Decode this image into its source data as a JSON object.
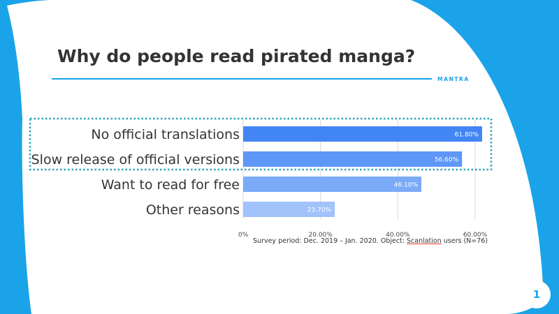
{
  "slide": {
    "title": "Why do people read pirated manga?",
    "brand": "MANTRA",
    "page_number": "1",
    "note_prefix": "Survey period: Dec. 2019 – Jan. 2020. Object: ",
    "note_underlined": "Scanlation",
    "note_suffix": " users (N=76)",
    "colors": {
      "background": "#1aa3e8",
      "panel": "#ffffff",
      "accent": "#1aa3e8",
      "highlight_outline": "#2aa5b8"
    }
  },
  "chart_data": {
    "type": "bar",
    "orientation": "horizontal",
    "categories": [
      "No official translations",
      "Slow release of official versions",
      "Want to read for free",
      "Other reasons"
    ],
    "values": [
      61.8,
      56.6,
      46.1,
      23.7
    ],
    "data_labels": [
      "61.80%",
      "56.60%",
      "46.10%",
      "23.70%"
    ],
    "bar_colors": [
      "#4285f4",
      "#5e97f6",
      "#7baaf7",
      "#a1c2fa"
    ],
    "xlim": [
      0,
      60
    ],
    "xticks": [
      0,
      20,
      40,
      60
    ],
    "xtick_labels": [
      "0%",
      "20.00%",
      "40.00%",
      "60.00%"
    ],
    "grid": true,
    "highlighted_categories": [
      0,
      1
    ]
  }
}
